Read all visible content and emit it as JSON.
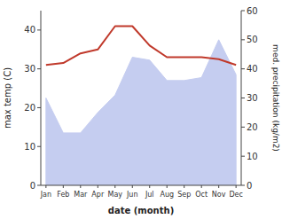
{
  "chart_data": {
    "type": "line",
    "x_label": "date (month)",
    "y_label": "max temp (C)",
    "y2_label": "med. precipitation (kg/m2)",
    "categories": [
      "Jan",
      "Feb",
      "Mar",
      "Apr",
      "May",
      "Jun",
      "Jul",
      "Aug",
      "Sep",
      "Oct",
      "Nov",
      "Dec"
    ],
    "series": [
      {
        "type": "line",
        "color": "#c0392b",
        "values": [
          31,
          31.5,
          34,
          35,
          41,
          41,
          36,
          33,
          33,
          33,
          32.5,
          31
        ]
      },
      {
        "type": "area",
        "axis": "y2",
        "color": "#c5cdf0",
        "values": [
          30,
          18,
          18,
          25,
          31,
          44,
          43,
          36,
          36,
          37,
          50,
          38
        ]
      }
    ],
    "ylim": [
      0,
      45
    ],
    "yticks": [
      0,
      10,
      20,
      30,
      40
    ],
    "y2lim": [
      0,
      60
    ],
    "y2ticks": [
      0,
      10,
      20,
      30,
      40,
      50,
      60
    ],
    "grid": false
  }
}
